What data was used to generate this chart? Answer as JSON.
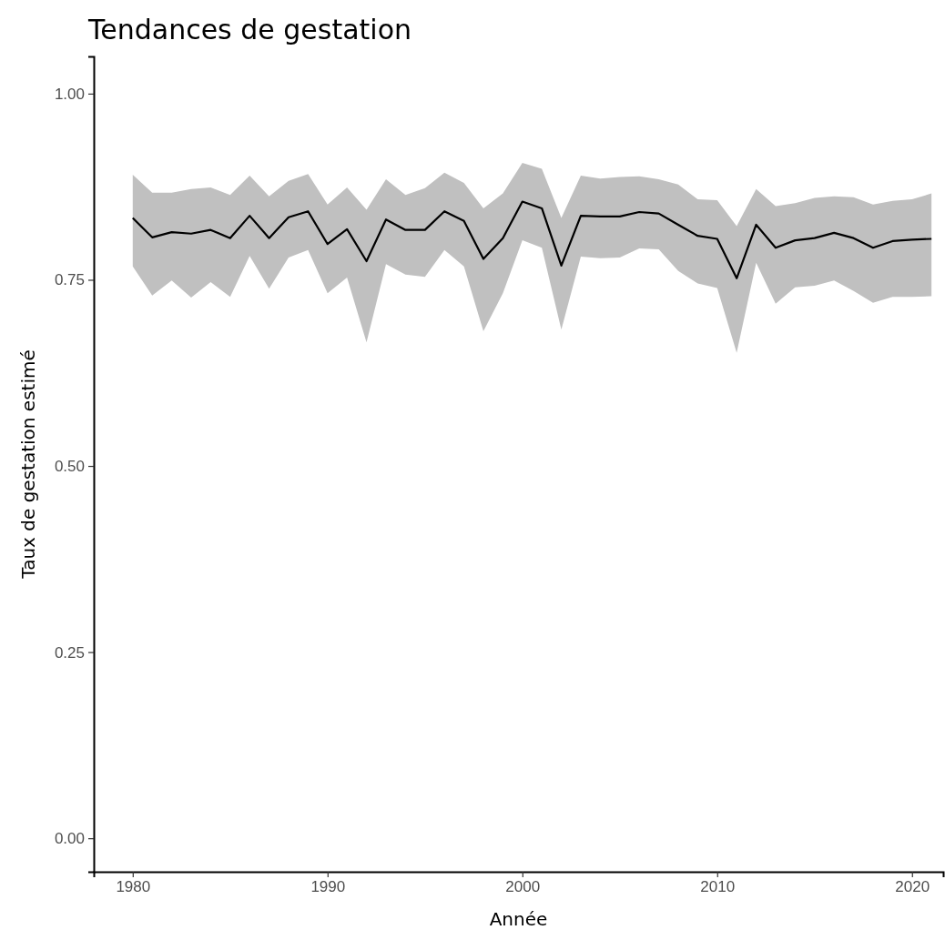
{
  "chart_data": {
    "type": "line",
    "title": "Tendances de gestation",
    "xlabel": "Année",
    "ylabel": "Taux de gestation estimé",
    "x": [
      1980,
      1981,
      1982,
      1983,
      1984,
      1985,
      1986,
      1987,
      1988,
      1989,
      1990,
      1991,
      1992,
      1993,
      1994,
      1995,
      1996,
      1997,
      1998,
      1999,
      2000,
      2001,
      2002,
      2003,
      2004,
      2005,
      2006,
      2007,
      2008,
      2009,
      2010,
      2011,
      2012,
      2013,
      2014,
      2015,
      2016,
      2017,
      2018,
      2019,
      2020,
      2021
    ],
    "series": [
      {
        "color": "#000000",
        "values": [
          0.833,
          0.807,
          0.814,
          0.812,
          0.817,
          0.806,
          0.836,
          0.806,
          0.834,
          0.842,
          0.798,
          0.818,
          0.775,
          0.831,
          0.817,
          0.817,
          0.842,
          0.829,
          0.778,
          0.806,
          0.855,
          0.846,
          0.769,
          0.836,
          0.835,
          0.835,
          0.841,
          0.839,
          0.824,
          0.809,
          0.805,
          0.752,
          0.824,
          0.793,
          0.803,
          0.806,
          0.813,
          0.806,
          0.793,
          0.802,
          0.804,
          0.805
        ],
        "lower": [
          0.768,
          0.729,
          0.749,
          0.726,
          0.747,
          0.727,
          0.782,
          0.738,
          0.78,
          0.79,
          0.732,
          0.753,
          0.666,
          0.771,
          0.757,
          0.754,
          0.79,
          0.768,
          0.681,
          0.732,
          0.803,
          0.793,
          0.683,
          0.781,
          0.779,
          0.78,
          0.792,
          0.791,
          0.762,
          0.745,
          0.739,
          0.652,
          0.773,
          0.718,
          0.74,
          0.742,
          0.749,
          0.735,
          0.719,
          0.727,
          0.727,
          0.728
        ],
        "upper": [
          0.891,
          0.867,
          0.867,
          0.872,
          0.874,
          0.864,
          0.89,
          0.862,
          0.883,
          0.892,
          0.851,
          0.874,
          0.844,
          0.885,
          0.864,
          0.873,
          0.894,
          0.88,
          0.846,
          0.866,
          0.907,
          0.899,
          0.833,
          0.89,
          0.886,
          0.888,
          0.889,
          0.885,
          0.878,
          0.858,
          0.857,
          0.822,
          0.872,
          0.849,
          0.853,
          0.86,
          0.862,
          0.861,
          0.851,
          0.856,
          0.858,
          0.866
        ]
      }
    ],
    "xlim": [
      1978,
      2021.6
    ],
    "ylim": [
      -0.045,
      1.05
    ],
    "xticks": [
      1980,
      1990,
      2000,
      2010,
      2020
    ],
    "yticks": [
      {
        "value": 0,
        "label": "0.00"
      },
      {
        "value": 0.25,
        "label": "0.25"
      },
      {
        "value": 0.5,
        "label": "0.50"
      },
      {
        "value": 0.75,
        "label": "0.75"
      },
      {
        "value": 1,
        "label": "1.00"
      }
    ],
    "grid": false,
    "line_style": "solid"
  }
}
